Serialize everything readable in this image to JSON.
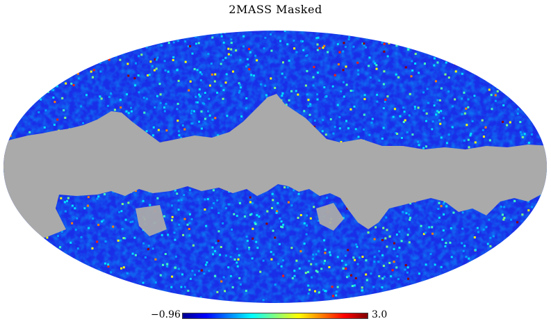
{
  "map": {
    "title": "2MASS Masked",
    "projection": "mollweide",
    "mask_color": "#aaaaaa",
    "background": "#ffffff"
  },
  "colorbar": {
    "min_label": "−0.96",
    "max_label": "3.0",
    "min_value": -0.96,
    "max_value": 3.0,
    "colormap": "jet",
    "stops": [
      "#00008f",
      "#0000ff",
      "#0080ff",
      "#00ffff",
      "#80ff80",
      "#ffff00",
      "#ff8000",
      "#ff0000",
      "#800000"
    ]
  }
}
